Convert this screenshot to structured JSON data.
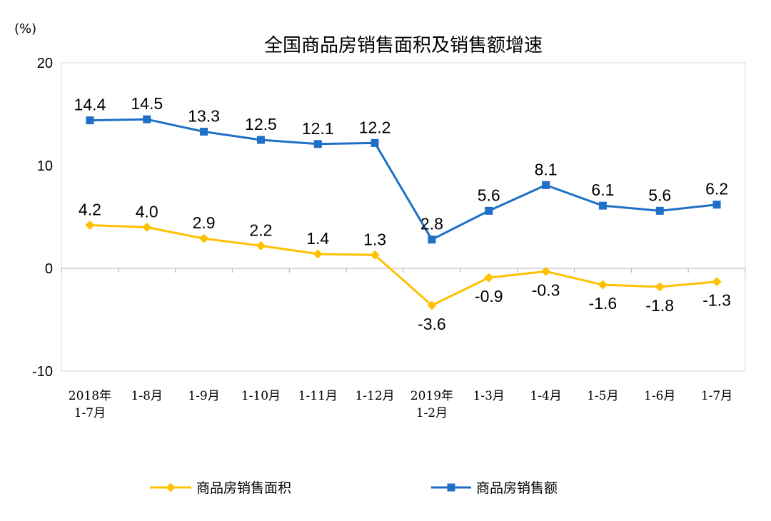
{
  "chart_data": {
    "type": "line",
    "title": "全国商品房销售面积及销售额增速",
    "unit_label": "(%)",
    "xlabel": "",
    "ylabel": "",
    "ylim": [
      -10,
      20
    ],
    "yticks": [
      -10,
      0,
      10,
      20
    ],
    "grid": false,
    "legend_position": "bottom",
    "categories": [
      [
        "2018年",
        "1-7月"
      ],
      [
        "1-8月"
      ],
      [
        "1-9月"
      ],
      [
        "1-10月"
      ],
      [
        "1-11月"
      ],
      [
        "1-12月"
      ],
      [
        "2019年",
        "1-2月"
      ],
      [
        "1-3月"
      ],
      [
        "1-4月"
      ],
      [
        "1-5月"
      ],
      [
        "1-6月"
      ],
      [
        "1-7月"
      ]
    ],
    "series": [
      {
        "name": "商品房销售面积",
        "color": "#ffc000",
        "marker": "diamond",
        "label_position": "mixed",
        "values": [
          4.2,
          4.0,
          2.9,
          2.2,
          1.4,
          1.3,
          -3.6,
          -0.9,
          -0.3,
          -1.6,
          -1.8,
          -1.3
        ],
        "labels": [
          "4.2",
          "4.0",
          "2.9",
          "2.2",
          "1.4",
          "1.3",
          "-3.6",
          "-0.9",
          "-0.3",
          "-1.6",
          "-1.8",
          "-1.3"
        ]
      },
      {
        "name": "商品房销售额",
        "color": "#1f6fc6",
        "marker": "square",
        "label_position": "above",
        "values": [
          14.4,
          14.5,
          13.3,
          12.5,
          12.1,
          12.2,
          2.8,
          5.6,
          8.1,
          6.1,
          5.6,
          6.2
        ],
        "labels": [
          "14.4",
          "14.5",
          "13.3",
          "12.5",
          "12.1",
          "12.2",
          "2.8",
          "5.6",
          "8.1",
          "6.1",
          "5.6",
          "6.2"
        ]
      }
    ]
  }
}
